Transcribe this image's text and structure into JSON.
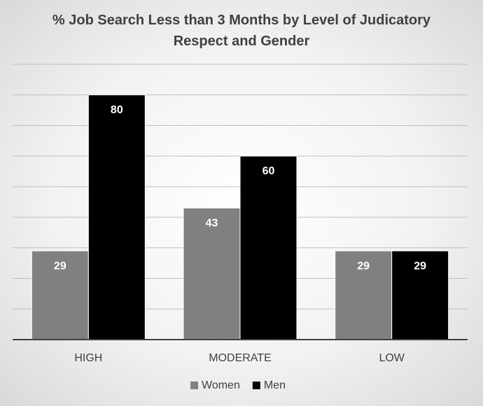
{
  "chart_data": {
    "type": "bar",
    "title": "% Job Search Less than 3 Months by Level of Judicatory Respect and Gender",
    "categories": [
      "HIGH",
      "MODERATE",
      "LOW"
    ],
    "series": [
      {
        "name": "Women",
        "color": "#808080",
        "values": [
          29,
          43,
          29
        ]
      },
      {
        "name": "Men",
        "color": "#000000",
        "values": [
          80,
          60,
          29
        ]
      }
    ],
    "ylim": [
      0,
      90
    ],
    "yticks": [
      0,
      10,
      20,
      30,
      40,
      50,
      60,
      70,
      80,
      90
    ],
    "grid": true,
    "legend": "bottom"
  }
}
